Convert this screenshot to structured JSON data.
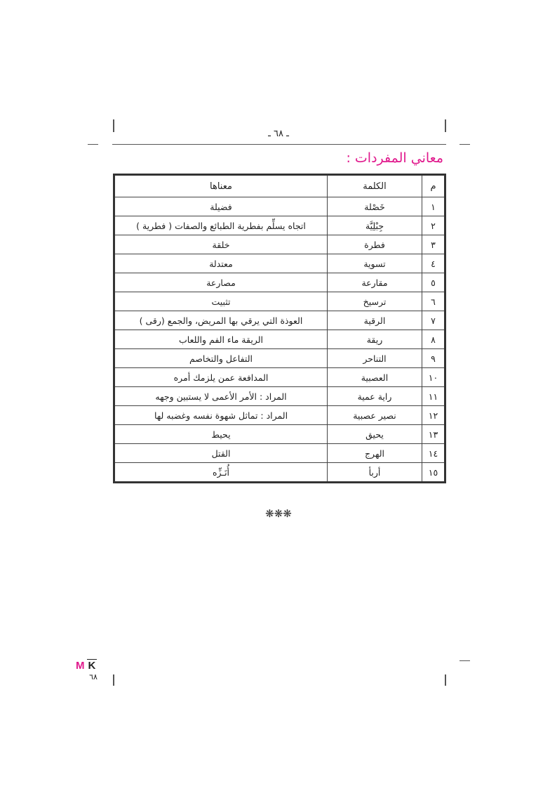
{
  "header": {
    "page_number": "ـ ٦٨ ـ"
  },
  "section_title": "معاني المفردات :",
  "table": {
    "headers": {
      "num": "م",
      "word": "الكلمة",
      "meaning": "معناها"
    },
    "rows": [
      {
        "num": "١",
        "word": "خَصْلة",
        "meaning": "فضيلة"
      },
      {
        "num": "٢",
        "word": "جِبْلِيَّة",
        "meaning": "اتجاه يسلِّم بفطرية الطبائع والصفات ( فطرية )"
      },
      {
        "num": "٣",
        "word": "فطرة",
        "meaning": "خلقة"
      },
      {
        "num": "٤",
        "word": "تسوية",
        "meaning": "معتدلة"
      },
      {
        "num": "٥",
        "word": "مقارعة",
        "meaning": "مصارعة"
      },
      {
        "num": "٦",
        "word": "ترسيخ",
        "meaning": "تثبيت"
      },
      {
        "num": "٧",
        "word": "الرقية",
        "meaning": "العوذة التي يرقي بها المريض، والجمع (رقى )"
      },
      {
        "num": "٨",
        "word": "ريقة",
        "meaning": "الريقة ماء الفم واللعاب"
      },
      {
        "num": "٩",
        "word": "التناحر",
        "meaning": "التفاعل والتخاصم"
      },
      {
        "num": "١٠",
        "word": "العصبية",
        "meaning": "المدافعة عمن يلزمك أمره"
      },
      {
        "num": "١١",
        "word": "راية عمية",
        "meaning": "المراد : الأمر الأعمى لا يستبين وجهه"
      },
      {
        "num": "١٢",
        "word": "نصير عصبية",
        "meaning": "المراد : تماثل شهوة نفسه وغضبه لها"
      },
      {
        "num": "١٣",
        "word": "يحيق",
        "meaning": "يحيط"
      },
      {
        "num": "١٤",
        "word": "الهرج",
        "meaning": "القتل"
      },
      {
        "num": "١٥",
        "word": "أربأ",
        "meaning": "أُنَـزِّه"
      }
    ]
  },
  "separator": "❋❋❋",
  "footer": {
    "logo_m": "M",
    "logo_k": "K",
    "page_number": "٦٨"
  },
  "colors": {
    "accent": "#e0188c"
  }
}
